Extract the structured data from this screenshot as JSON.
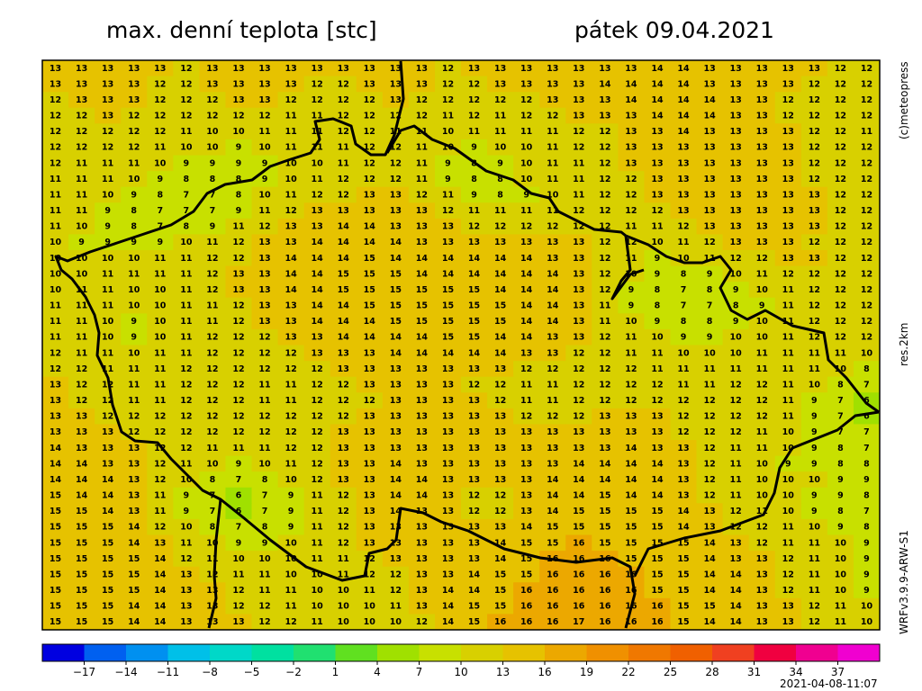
{
  "header": {
    "title": "max. denní teplota [stc]",
    "date": "pátek 09.04.2021"
  },
  "side_labels": {
    "copyright": "(c)meteopress",
    "resolution": "res.2km",
    "model": "WRFv3.9.9-ARW-S1"
  },
  "timestamp": "2021-04-08-11:07",
  "grid": {
    "values": [
      [
        13,
        13,
        13,
        13,
        13,
        12,
        13,
        13,
        13,
        13,
        13,
        13,
        13,
        13,
        13,
        12,
        13,
        13,
        13,
        13,
        13,
        13,
        13,
        14,
        14,
        13,
        13,
        13,
        13,
        13,
        12,
        12
      ],
      [
        13,
        13,
        13,
        13,
        12,
        12,
        13,
        13,
        13,
        13,
        12,
        12,
        13,
        13,
        13,
        12,
        12,
        13,
        13,
        13,
        13,
        14,
        14,
        14,
        14,
        13,
        13,
        13,
        13,
        12,
        12,
        12
      ],
      [
        12,
        13,
        13,
        13,
        12,
        12,
        12,
        13,
        13,
        12,
        12,
        12,
        12,
        13,
        12,
        12,
        12,
        12,
        12,
        13,
        13,
        13,
        14,
        14,
        14,
        14,
        13,
        13,
        12,
        12,
        12,
        12
      ],
      [
        12,
        12,
        13,
        12,
        12,
        12,
        12,
        12,
        12,
        11,
        11,
        12,
        12,
        12,
        12,
        11,
        12,
        11,
        12,
        12,
        13,
        13,
        13,
        14,
        14,
        14,
        13,
        13,
        12,
        12,
        12,
        12
      ],
      [
        12,
        12,
        12,
        12,
        12,
        11,
        10,
        10,
        11,
        11,
        11,
        12,
        12,
        11,
        11,
        10,
        11,
        11,
        11,
        11,
        12,
        12,
        13,
        13,
        14,
        13,
        13,
        13,
        13,
        12,
        12,
        11
      ],
      [
        12,
        12,
        12,
        12,
        11,
        10,
        10,
        9,
        10,
        11,
        11,
        11,
        12,
        12,
        11,
        10,
        9,
        10,
        10,
        11,
        12,
        12,
        13,
        13,
        13,
        13,
        13,
        13,
        13,
        12,
        12,
        12
      ],
      [
        12,
        11,
        11,
        11,
        10,
        9,
        9,
        9,
        9,
        10,
        10,
        11,
        12,
        12,
        11,
        9,
        8,
        9,
        10,
        11,
        11,
        12,
        13,
        13,
        13,
        13,
        13,
        13,
        13,
        12,
        12,
        12
      ],
      [
        11,
        11,
        11,
        10,
        9,
        8,
        8,
        8,
        9,
        10,
        11,
        12,
        12,
        12,
        11,
        9,
        8,
        8,
        10,
        11,
        11,
        12,
        12,
        13,
        13,
        13,
        13,
        13,
        13,
        12,
        12,
        12
      ],
      [
        11,
        11,
        10,
        9,
        8,
        7,
        7,
        8,
        10,
        11,
        12,
        12,
        13,
        13,
        12,
        11,
        9,
        8,
        9,
        10,
        11,
        12,
        12,
        13,
        13,
        13,
        13,
        13,
        13,
        13,
        12,
        12
      ],
      [
        11,
        11,
        9,
        8,
        7,
        7,
        7,
        9,
        11,
        12,
        13,
        13,
        13,
        13,
        13,
        12,
        11,
        11,
        11,
        11,
        12,
        12,
        12,
        12,
        13,
        13,
        13,
        13,
        13,
        13,
        12,
        12
      ],
      [
        11,
        10,
        9,
        8,
        7,
        8,
        9,
        11,
        12,
        13,
        13,
        14,
        14,
        13,
        13,
        13,
        12,
        12,
        12,
        12,
        12,
        12,
        11,
        11,
        12,
        13,
        13,
        13,
        13,
        13,
        12,
        12
      ],
      [
        10,
        9,
        9,
        9,
        9,
        10,
        11,
        12,
        13,
        13,
        14,
        14,
        14,
        14,
        13,
        13,
        13,
        13,
        13,
        13,
        13,
        12,
        12,
        10,
        11,
        12,
        13,
        13,
        13,
        12,
        12,
        12
      ],
      [
        10,
        10,
        10,
        10,
        11,
        11,
        12,
        12,
        13,
        14,
        14,
        14,
        15,
        14,
        14,
        14,
        14,
        14,
        14,
        13,
        13,
        12,
        11,
        9,
        10,
        11,
        12,
        12,
        13,
        13,
        12,
        12
      ],
      [
        10,
        10,
        11,
        11,
        11,
        11,
        12,
        13,
        13,
        14,
        14,
        15,
        15,
        15,
        14,
        14,
        14,
        14,
        14,
        14,
        13,
        12,
        10,
        9,
        8,
        9,
        10,
        11,
        12,
        12,
        12,
        12
      ],
      [
        10,
        11,
        11,
        10,
        10,
        11,
        12,
        13,
        13,
        14,
        14,
        15,
        15,
        15,
        15,
        15,
        15,
        14,
        14,
        14,
        13,
        12,
        9,
        8,
        7,
        8,
        9,
        10,
        11,
        12,
        12,
        12
      ],
      [
        11,
        11,
        11,
        10,
        10,
        11,
        11,
        12,
        13,
        13,
        14,
        14,
        15,
        15,
        15,
        15,
        15,
        15,
        14,
        14,
        13,
        11,
        9,
        8,
        7,
        7,
        8,
        9,
        11,
        12,
        12,
        12
      ],
      [
        11,
        11,
        10,
        9,
        10,
        11,
        11,
        12,
        13,
        13,
        14,
        14,
        14,
        15,
        15,
        15,
        15,
        15,
        14,
        14,
        13,
        11,
        10,
        9,
        8,
        8,
        9,
        10,
        11,
        12,
        12,
        12
      ],
      [
        11,
        11,
        10,
        9,
        10,
        11,
        12,
        12,
        12,
        13,
        13,
        14,
        14,
        14,
        14,
        15,
        15,
        14,
        14,
        13,
        13,
        12,
        11,
        10,
        9,
        9,
        10,
        10,
        11,
        12,
        12,
        12
      ],
      [
        12,
        11,
        11,
        10,
        11,
        11,
        12,
        12,
        12,
        12,
        13,
        13,
        13,
        14,
        14,
        14,
        14,
        14,
        13,
        13,
        12,
        12,
        11,
        11,
        10,
        10,
        10,
        11,
        11,
        11,
        11,
        10
      ],
      [
        12,
        12,
        11,
        11,
        11,
        12,
        12,
        12,
        12,
        12,
        12,
        13,
        13,
        13,
        13,
        13,
        13,
        13,
        12,
        12,
        12,
        12,
        12,
        11,
        11,
        11,
        11,
        11,
        11,
        11,
        10,
        8
      ],
      [
        13,
        12,
        12,
        11,
        11,
        12,
        12,
        12,
        11,
        11,
        12,
        12,
        13,
        13,
        13,
        13,
        12,
        12,
        11,
        11,
        12,
        12,
        12,
        12,
        11,
        11,
        12,
        12,
        11,
        10,
        8,
        7
      ],
      [
        13,
        12,
        12,
        11,
        11,
        12,
        12,
        12,
        11,
        11,
        12,
        12,
        12,
        13,
        13,
        13,
        13,
        12,
        11,
        11,
        12,
        12,
        12,
        12,
        12,
        12,
        12,
        12,
        11,
        9,
        7,
        6
      ],
      [
        13,
        13,
        12,
        12,
        12,
        12,
        12,
        12,
        12,
        12,
        12,
        12,
        13,
        13,
        13,
        13,
        13,
        13,
        12,
        12,
        12,
        13,
        13,
        13,
        12,
        12,
        12,
        12,
        11,
        9,
        7,
        6
      ],
      [
        13,
        13,
        13,
        12,
        12,
        12,
        12,
        12,
        12,
        12,
        12,
        13,
        13,
        13,
        13,
        13,
        13,
        13,
        13,
        13,
        13,
        13,
        13,
        13,
        12,
        12,
        12,
        11,
        10,
        9,
        7,
        7
      ],
      [
        14,
        13,
        13,
        13,
        12,
        12,
        11,
        11,
        11,
        12,
        12,
        13,
        13,
        13,
        13,
        13,
        13,
        13,
        13,
        13,
        13,
        13,
        14,
        13,
        13,
        12,
        11,
        11,
        10,
        9,
        8,
        7
      ],
      [
        14,
        14,
        13,
        13,
        12,
        11,
        10,
        9,
        10,
        11,
        12,
        13,
        13,
        14,
        13,
        13,
        13,
        13,
        13,
        13,
        14,
        14,
        14,
        14,
        13,
        12,
        11,
        10,
        9,
        9,
        8,
        8
      ],
      [
        14,
        14,
        14,
        13,
        12,
        10,
        8,
        7,
        8,
        10,
        12,
        13,
        13,
        14,
        14,
        13,
        13,
        13,
        13,
        14,
        14,
        14,
        14,
        14,
        13,
        12,
        11,
        10,
        10,
        10,
        9,
        9
      ],
      [
        15,
        14,
        14,
        13,
        11,
        9,
        7,
        6,
        7,
        9,
        11,
        12,
        13,
        14,
        14,
        13,
        12,
        12,
        13,
        14,
        14,
        15,
        14,
        14,
        13,
        12,
        11,
        10,
        10,
        9,
        9,
        8
      ],
      [
        15,
        15,
        14,
        13,
        11,
        9,
        7,
        6,
        7,
        9,
        11,
        12,
        13,
        14,
        13,
        13,
        12,
        12,
        13,
        14,
        15,
        15,
        15,
        15,
        14,
        13,
        12,
        11,
        10,
        9,
        8,
        7
      ],
      [
        15,
        15,
        15,
        14,
        12,
        10,
        8,
        7,
        8,
        9,
        11,
        12,
        13,
        13,
        13,
        13,
        13,
        13,
        14,
        15,
        15,
        15,
        15,
        15,
        14,
        13,
        12,
        12,
        11,
        10,
        9,
        8
      ],
      [
        15,
        15,
        15,
        14,
        13,
        11,
        10,
        9,
        9,
        10,
        11,
        12,
        13,
        13,
        13,
        13,
        13,
        14,
        15,
        15,
        16,
        15,
        15,
        15,
        15,
        14,
        13,
        12,
        11,
        11,
        10,
        9
      ],
      [
        15,
        15,
        15,
        15,
        14,
        12,
        11,
        10,
        10,
        10,
        11,
        11,
        12,
        13,
        13,
        13,
        13,
        14,
        15,
        16,
        16,
        16,
        15,
        15,
        15,
        14,
        13,
        13,
        12,
        11,
        10,
        9
      ],
      [
        15,
        15,
        15,
        15,
        14,
        13,
        12,
        11,
        11,
        10,
        10,
        11,
        12,
        12,
        13,
        13,
        14,
        15,
        15,
        16,
        16,
        16,
        16,
        15,
        15,
        14,
        14,
        13,
        12,
        11,
        10,
        9
      ],
      [
        15,
        15,
        15,
        15,
        14,
        13,
        13,
        12,
        11,
        11,
        10,
        10,
        11,
        12,
        13,
        14,
        14,
        15,
        16,
        16,
        16,
        16,
        16,
        15,
        15,
        14,
        14,
        13,
        12,
        11,
        10,
        9
      ],
      [
        15,
        15,
        15,
        14,
        14,
        13,
        13,
        12,
        12,
        11,
        10,
        10,
        10,
        11,
        13,
        14,
        15,
        15,
        16,
        16,
        16,
        16,
        16,
        16,
        15,
        15,
        14,
        13,
        13,
        12,
        11,
        10
      ],
      [
        15,
        15,
        15,
        14,
        14,
        13,
        13,
        13,
        12,
        12,
        11,
        10,
        10,
        10,
        12,
        14,
        15,
        16,
        16,
        16,
        17,
        16,
        16,
        16,
        15,
        14,
        14,
        13,
        13,
        12,
        11,
        10
      ]
    ]
  },
  "colorbar": {
    "lim": [
      -20,
      40
    ],
    "colors": [
      "#0000e0",
      "#0060f0",
      "#0090f0",
      "#00c0e8",
      "#00d8c8",
      "#00e0a0",
      "#20e070",
      "#60e020",
      "#a0e000",
      "#c8e000",
      "#d8d000",
      "#e6c200",
      "#eca800",
      "#f09000",
      "#f07800",
      "#f06000",
      "#f04020",
      "#f00040",
      "#f00090",
      "#f000d0"
    ],
    "ticks": [
      {
        "value": -17,
        "label": "−17"
      },
      {
        "value": -14,
        "label": "−14"
      },
      {
        "value": -11,
        "label": "−11"
      },
      {
        "value": -8,
        "label": "−8"
      },
      {
        "value": -5,
        "label": "−5"
      },
      {
        "value": -2,
        "label": "−2"
      },
      1,
      4,
      7,
      10,
      13,
      16,
      19,
      22,
      25,
      28,
      31,
      34,
      37
    ]
  }
}
